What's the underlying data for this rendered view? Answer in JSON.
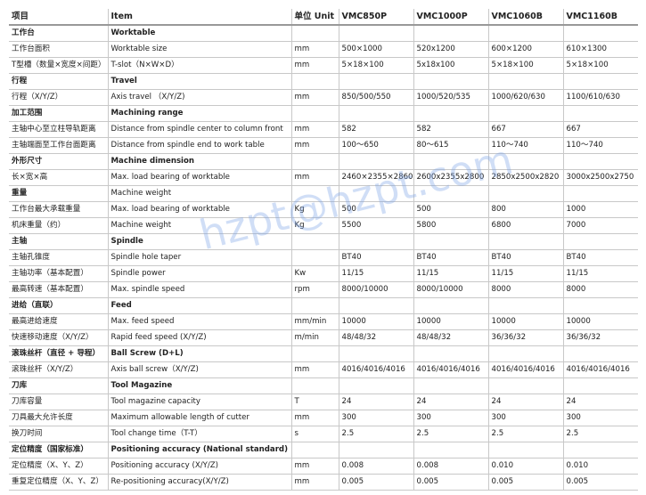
{
  "table": {
    "header": [
      "项目",
      "Item",
      "单位 Unit",
      "VMC850P",
      "VMC1000P",
      "VMC1060B",
      "VMC1160B"
    ],
    "rows": [
      {
        "kind": "section",
        "cells": [
          "工作台",
          "Worktable"
        ]
      },
      {
        "cells": [
          "工作台面积",
          "Worktable size",
          "mm",
          "500×1000",
          "520x1200",
          "600×1200",
          "610×1300"
        ]
      },
      {
        "cells": [
          "T型槽（数量×宽度×间距）",
          "T-slot（N×W×D）",
          "mm",
          "5×18×100",
          "5x18x100",
          "5×18×100",
          "5×18×100"
        ]
      },
      {
        "kind": "section",
        "cells": [
          "行程",
          "Travel"
        ]
      },
      {
        "cells": [
          "行程（X/Y/Z）",
          "Axis travel （X/Y/Z)",
          "mm",
          "850/500/550",
          "1000/520/535",
          "1000/620/630",
          "1100/610/630"
        ]
      },
      {
        "kind": "section",
        "cells": [
          "加工范围",
          "Machining range"
        ]
      },
      {
        "cells": [
          "主轴中心至立柱导轨距离",
          "Distance from spindle center to column front",
          "mm",
          "582",
          "582",
          "667",
          "667"
        ]
      },
      {
        "cells": [
          "主轴端面至工作台面距离",
          "Distance from spindle end to work table",
          "mm",
          "100～650",
          "80～615",
          "110～740",
          "110～740"
        ]
      },
      {
        "kind": "section",
        "cells": [
          "外形尺寸",
          "Machine dimension"
        ]
      },
      {
        "cells": [
          "长×宽×高",
          "Max. load bearing of worktable",
          "mm",
          "2460×2355×2860",
          "2600x2355x2800",
          "2850x2500x2820",
          "3000x2500x2750"
        ]
      },
      {
        "kind": "subsection",
        "cells": [
          "重量",
          "Machine weight"
        ]
      },
      {
        "cells": [
          "工作台最大承载重量",
          "Max. load bearing of worktable",
          "Kg",
          "500",
          "500",
          "800",
          "1000"
        ]
      },
      {
        "cells": [
          "机床重量（约）",
          "Machine weight",
          "Kg",
          "5500",
          "5800",
          "6800",
          "7000"
        ]
      },
      {
        "kind": "section",
        "cells": [
          "主轴",
          "Spindle"
        ]
      },
      {
        "cells": [
          "主轴孔锥度",
          "Spindle hole taper",
          "",
          "BT40",
          "BT40",
          "BT40",
          "BT40"
        ]
      },
      {
        "cells": [
          "主轴功率（基本配置）",
          "Spindle power",
          "Kw",
          "11/15",
          "11/15",
          "11/15",
          "11/15"
        ]
      },
      {
        "cells": [
          "最高转速（基本配置）",
          "Max. spindle speed",
          "rpm",
          "8000/10000",
          "8000/10000",
          "8000",
          "8000"
        ]
      },
      {
        "kind": "section",
        "cells": [
          "进给（直联）",
          "Feed"
        ]
      },
      {
        "cells": [
          "最高进给速度",
          "Max. feed speed",
          "mm/min",
          "10000",
          "10000",
          "10000",
          "10000"
        ]
      },
      {
        "cells": [
          "快速移动速度（X/Y/Z）",
          "Rapid feed speed (X/Y/Z)",
          "m/min",
          "48/48/32",
          "48/48/32",
          "36/36/32",
          "36/36/32"
        ]
      },
      {
        "kind": "section",
        "cells": [
          "滚珠丝杆（直径 + 导程）",
          "Ball Screw (D+L)"
        ]
      },
      {
        "cells": [
          "滚珠丝杆（X/Y/Z）",
          "Axis ball screw（X/Y/Z)",
          "mm",
          "4016/4016/4016",
          "4016/4016/4016",
          "4016/4016/4016",
          "4016/4016/4016"
        ]
      },
      {
        "kind": "section",
        "cells": [
          "刀库",
          "Tool Magazine"
        ]
      },
      {
        "cells": [
          "刀库容量",
          "Tool magazine capacity",
          "T",
          "24",
          "24",
          "24",
          "24"
        ]
      },
      {
        "cells": [
          "刀具最大允许长度",
          "Maximum allowable length of cutter",
          "mm",
          "300",
          "300",
          "300",
          "300"
        ]
      },
      {
        "cells": [
          "换刀时间",
          "Tool change time（T-T）",
          "s",
          "2.5",
          "2.5",
          "2.5",
          "2.5"
        ]
      },
      {
        "kind": "section",
        "cells": [
          "定位精度（国家标准）",
          "Positioning accuracy (National standard)"
        ]
      },
      {
        "cells": [
          "定位精度（X、Y、Z）",
          "Positioning accuracy (X/Y/Z)",
          "mm",
          "0.008",
          "0.008",
          "0.010",
          "0.010"
        ]
      },
      {
        "cells": [
          "重复定位精度（X、Y、Z）",
          "Re-positioning accuracy(X/Y/Z)",
          "mm",
          "0.005",
          "0.005",
          "0.005",
          "0.005"
        ]
      }
    ]
  },
  "watermark": "hzpt@hzpt.com"
}
